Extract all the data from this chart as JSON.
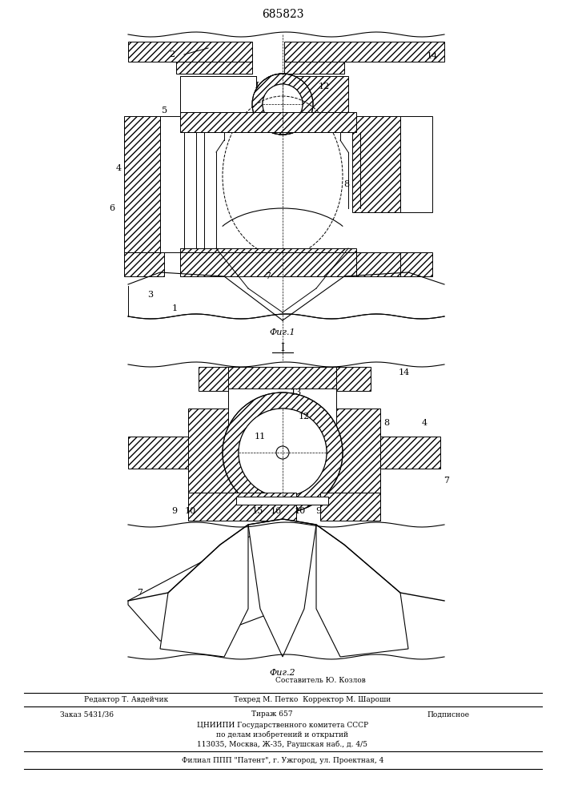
{
  "patent_number": "685823",
  "fig1_label": "Фиг.1",
  "fig2_label": "Фиг.2",
  "section_label": "I",
  "bg_color": "#ffffff",
  "line_color": "#000000",
  "hatch_color": "#000000",
  "footer_lines": [
    "Составитель Ю. Козлов",
    "Редактор Т. Авдейчик     Техред М. Петко  Корректор М. Шароши",
    "Заказ 5431/36          Тираж 657          Подписное",
    "ЦНИИПИ Государственного комитета СССР",
    "по делам изобретений и открытий",
    "113035, Москва, Ж-35, Раушская наб., д. 4/5",
    "Филиал ППП «Патент», г. Ужгород, ул. Проектная, 4"
  ]
}
